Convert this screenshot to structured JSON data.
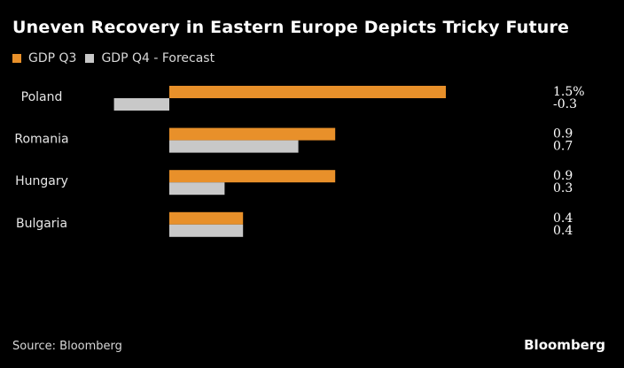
{
  "title": "Uneven Recovery in Eastern Europe Depicts Tricky Future",
  "source": "Source: Bloomberg",
  "brand": "Bloomberg",
  "colors": {
    "q3": "#e8902a",
    "q4": "#c8c8c8",
    "background": "#000000",
    "text": "#ffffff"
  },
  "chart_data": {
    "type": "bar",
    "orientation": "horizontal",
    "title": "Uneven Recovery in Eastern Europe Depicts Tricky Future",
    "categories": [
      "Poland",
      "Romania",
      "Hungary",
      "Bulgaria"
    ],
    "series": [
      {
        "name": "GDP Q3",
        "values": [
          1.5,
          0.9,
          0.9,
          0.4
        ],
        "labels": [
          "1.5%",
          "0.9",
          "0.9",
          "0.4"
        ]
      },
      {
        "name": "GDP Q4 - Forecast",
        "values": [
          -0.3,
          0.7,
          0.3,
          0.4
        ],
        "labels": [
          "-0.3",
          "0.7",
          "0.3",
          "0.4"
        ]
      }
    ],
    "xlim": [
      -0.3,
      1.5
    ],
    "legend": "top-left",
    "grid": false,
    "xlabel": "",
    "ylabel": ""
  }
}
